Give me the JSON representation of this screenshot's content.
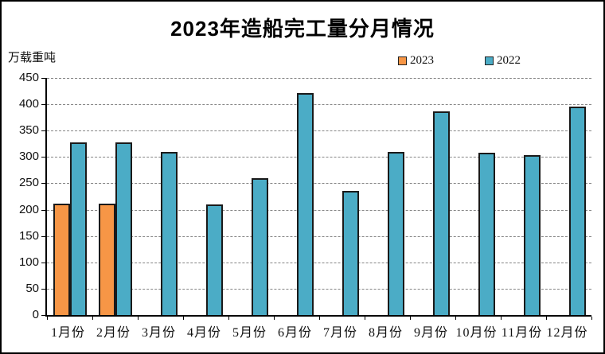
{
  "title": "2023年造船完工量分月情况",
  "y_axis_unit": "万载重吨",
  "legend": {
    "items": [
      {
        "label": "2023",
        "color": "#F79646"
      },
      {
        "label": "2022",
        "color": "#4BACC6"
      }
    ]
  },
  "chart_data": {
    "type": "bar",
    "title": "2023年造船完工量分月情况",
    "ylabel": "万载重吨",
    "xlabel": "",
    "categories": [
      "1月份",
      "2月份",
      "3月份",
      "4月份",
      "5月份",
      "6月份",
      "7月份",
      "8月份",
      "9月份",
      "10月份",
      "11月份",
      "12月份"
    ],
    "series": [
      {
        "name": "2023",
        "color": "#F79646",
        "values": [
          211,
          211,
          null,
          null,
          null,
          null,
          null,
          null,
          null,
          null,
          null,
          null
        ]
      },
      {
        "name": "2022",
        "color": "#4BACC6",
        "values": [
          327,
          327,
          310,
          210,
          260,
          422,
          235,
          309,
          387,
          308,
          304,
          396
        ]
      }
    ],
    "ylim": [
      0,
      450
    ],
    "ytick_step": 50,
    "grid": "horizontal-dashed",
    "legend_position": "top-right",
    "bar_border_color": "#1a1a1a"
  }
}
